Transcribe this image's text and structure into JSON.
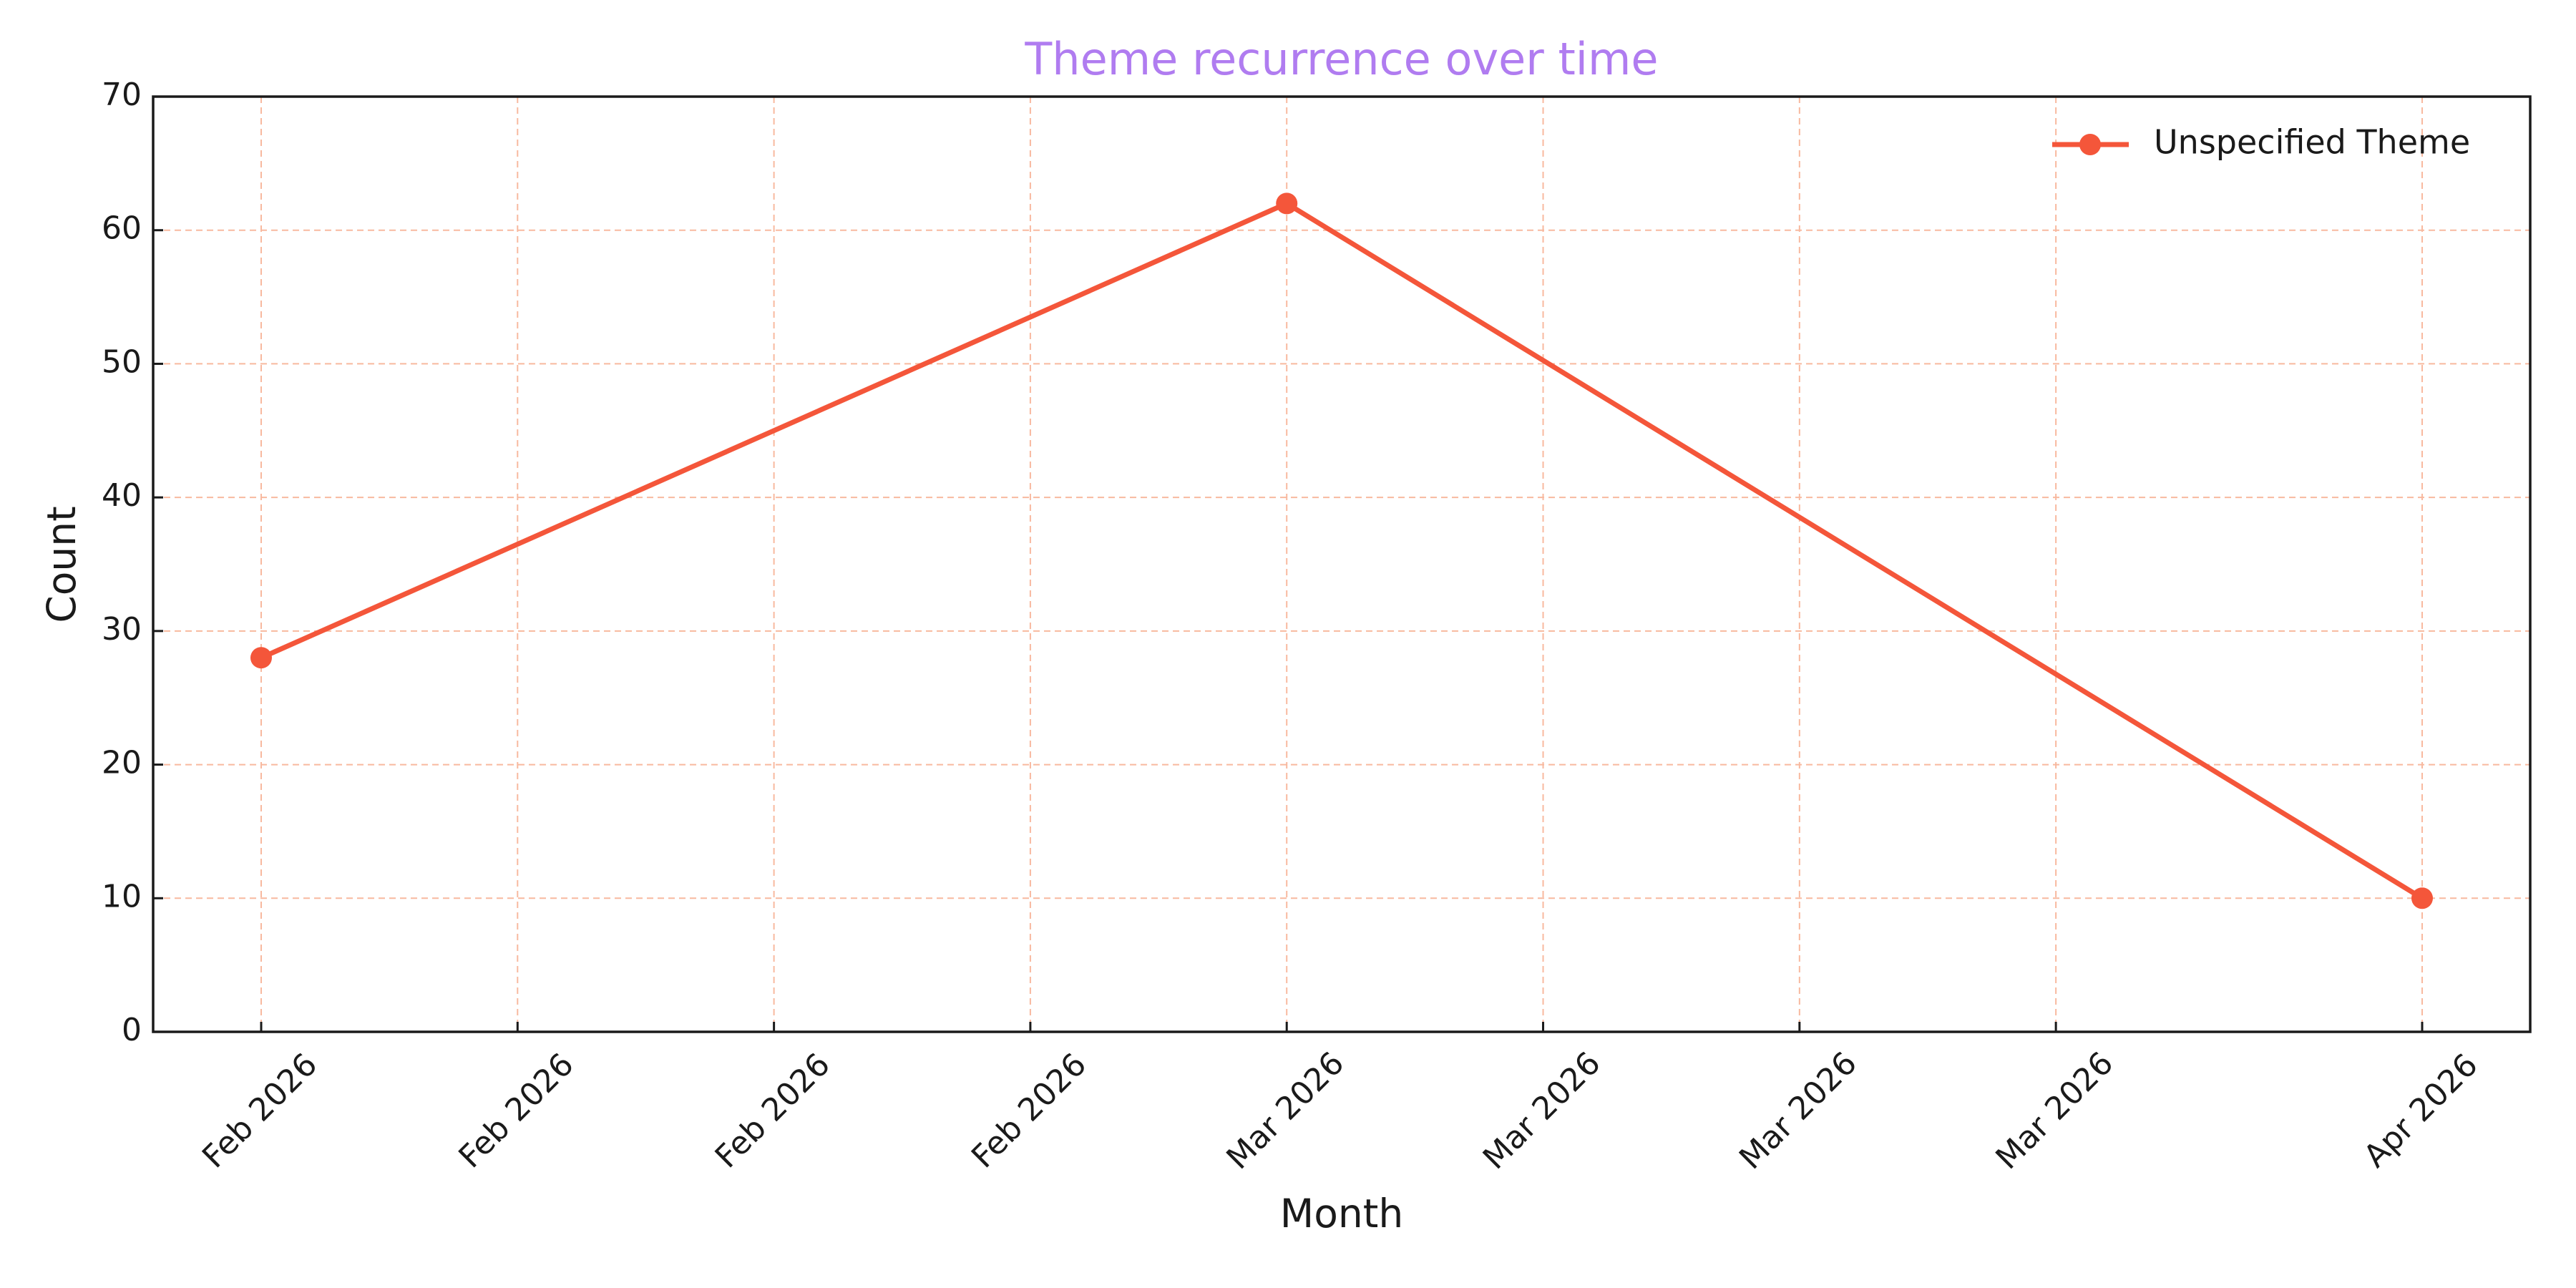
{
  "chart_data": {
    "type": "line",
    "title": "Theme recurrence over time",
    "x_label": "Month",
    "y_label": "Count",
    "x": [
      "2026-02",
      "2026-03",
      "2026-04"
    ],
    "series": [
      {
        "name": "Unspecified Theme",
        "color": "#f4563a",
        "values": [
          28,
          62,
          10
        ]
      }
    ],
    "xlim": [
      "2026-01-29T01:12:00Z",
      "2026-04-03T22:48:00Z"
    ],
    "xticks": [
      {
        "value": "2026-02-01",
        "label": "Feb 2026"
      },
      {
        "value": "2026-02-08",
        "label": "Feb 2026"
      },
      {
        "value": "2026-02-15",
        "label": "Feb 2026"
      },
      {
        "value": "2026-02-22",
        "label": "Feb 2026"
      },
      {
        "value": "2026-03-01",
        "label": "Mar 2026"
      },
      {
        "value": "2026-03-08",
        "label": "Mar 2026"
      },
      {
        "value": "2026-03-15",
        "label": "Mar 2026"
      },
      {
        "value": "2026-03-22",
        "label": "Mar 2026"
      },
      {
        "value": "2026-04-01",
        "label": "Apr 2026"
      }
    ],
    "ylim": [
      0,
      70
    ],
    "yticks": [
      0,
      10,
      20,
      30,
      40,
      50,
      60,
      70
    ],
    "grid": true,
    "grid_color": "#f8b99f",
    "title_color": "#b07cf0",
    "legend": "upper right"
  }
}
